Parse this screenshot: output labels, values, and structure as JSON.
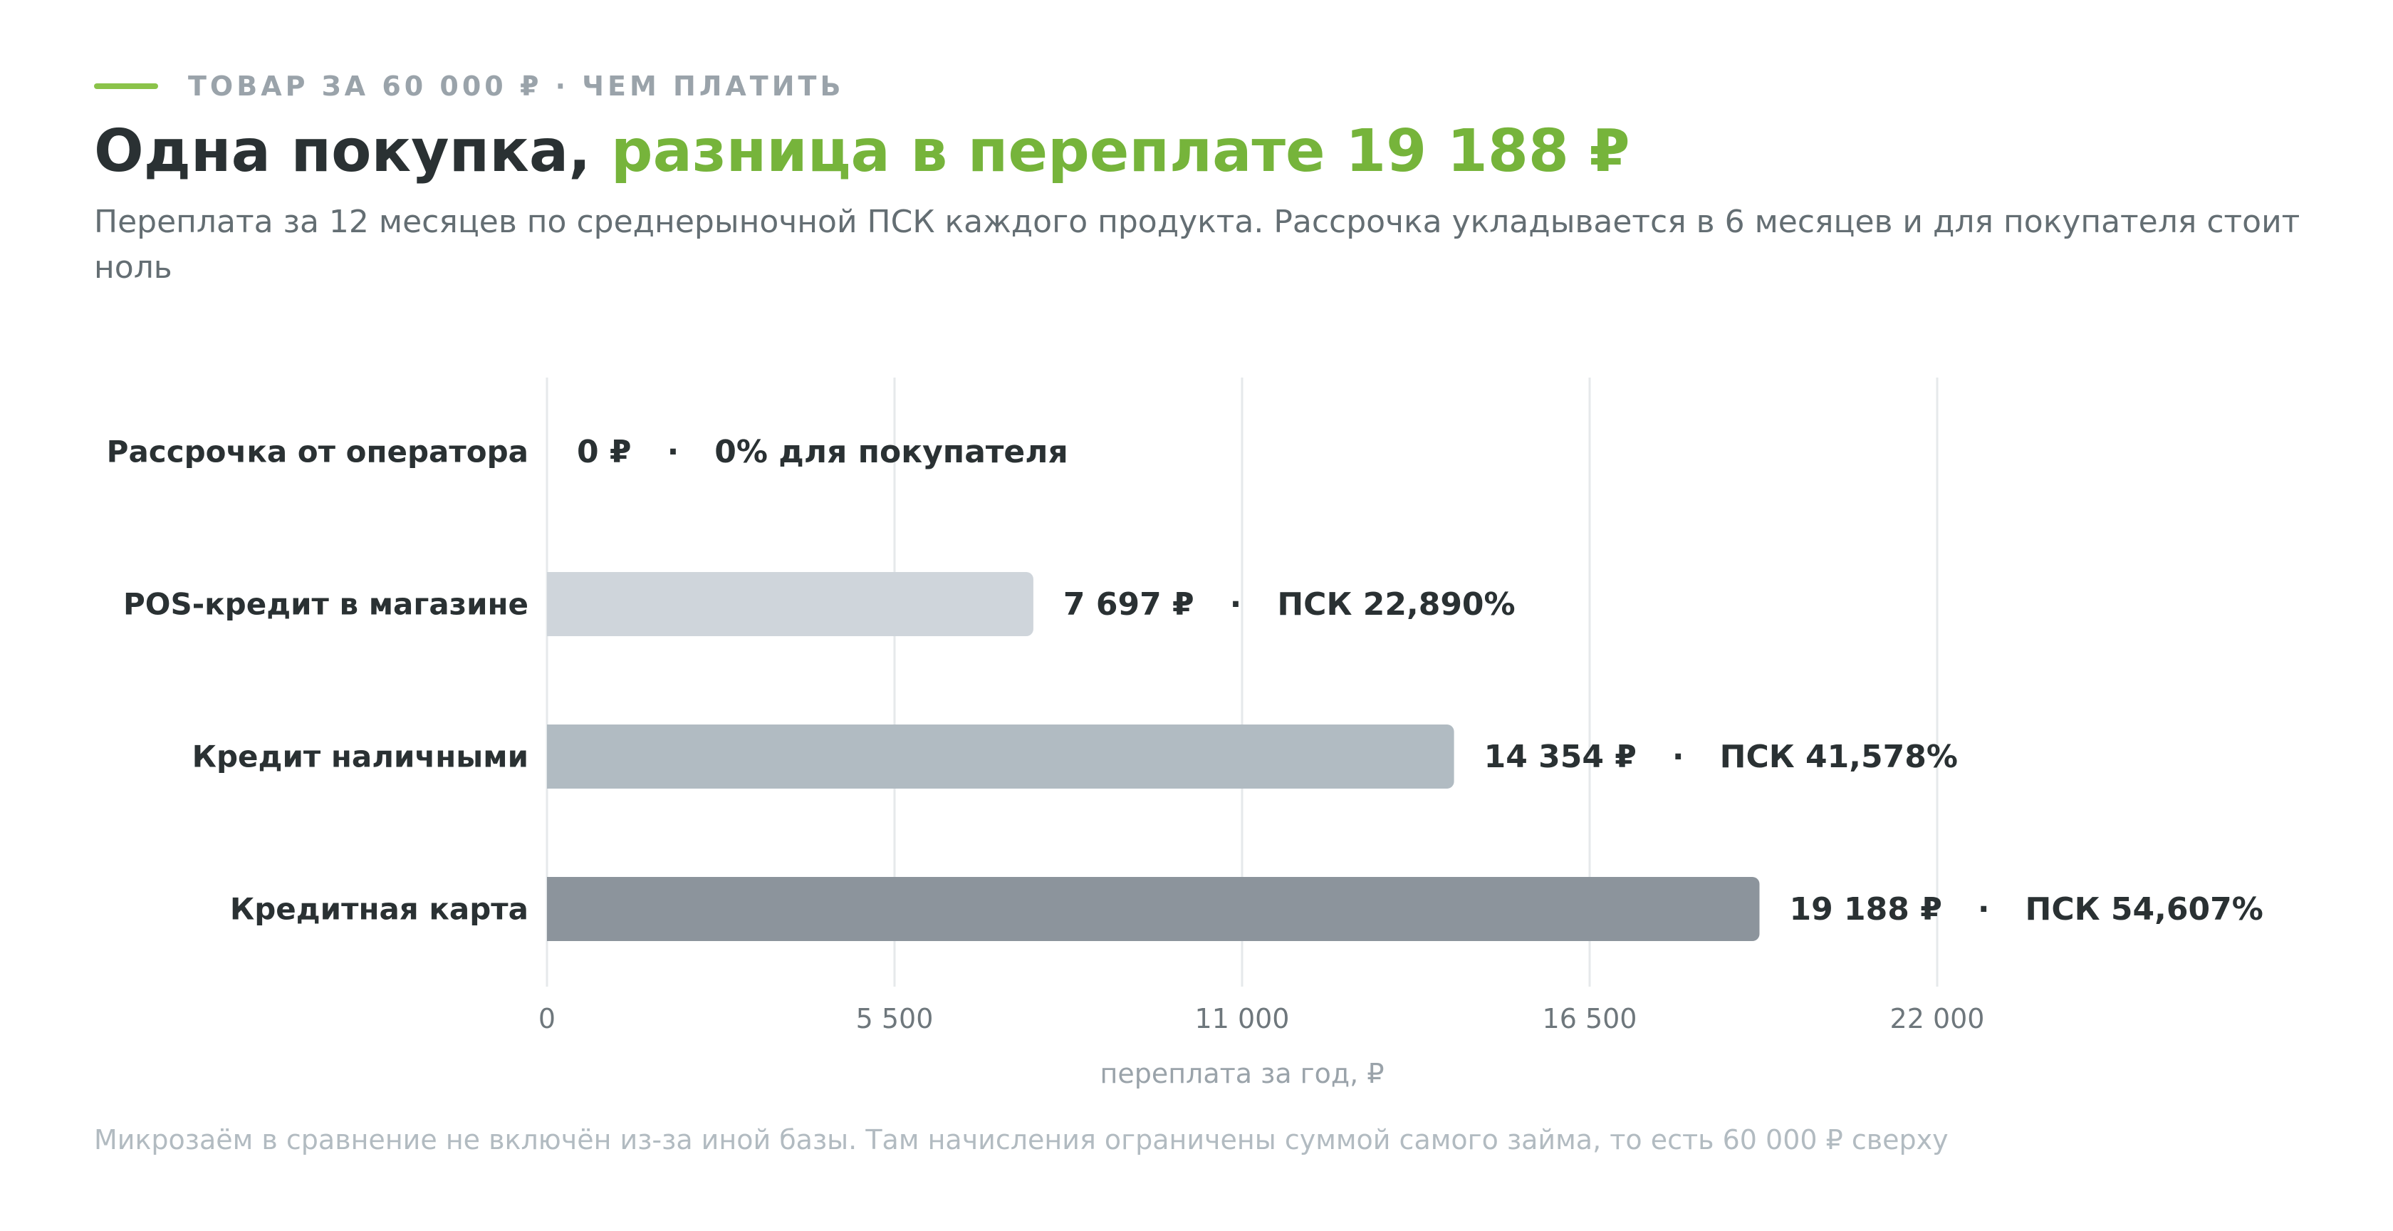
{
  "header": {
    "eyebrow": "ТОВАР ЗА 60 000 ₽ · ЧЕМ ПЛАТИТЬ",
    "title_main": "Одна покупка, ",
    "title_accent": "разница в переплате 19 188 ₽",
    "subtitle": "Переплата за 12 месяцев по среднерыночной ПСК каждого продукта. Рассрочка укладывается в 6 месяцев и для покупателя стоит ноль"
  },
  "colors": {
    "accent": "#76b43b",
    "eyebrow_line": "#8bc34a",
    "text_dark": "#2a3133",
    "grid": "#e6e9eb"
  },
  "chart_data": {
    "type": "bar",
    "orientation": "horizontal",
    "categories": [
      "Рассрочка от оператора",
      "POS-кредит в магазине",
      "Кредит наличными",
      "Кредитная карта"
    ],
    "values": [
      0,
      7697,
      14354,
      19188
    ],
    "value_labels": [
      "0 ₽",
      "7 697 ₽",
      "14 354 ₽",
      "19 188 ₽"
    ],
    "rate_labels": [
      "0% для покупателя",
      "ПСК 22,890%",
      "ПСК 41,578%",
      "ПСК 54,607%"
    ],
    "separator": "·",
    "bar_colors": [
      "#cfd5db",
      "#cfd5db",
      "#b1bbc2",
      "#8c949c"
    ],
    "xlim": [
      0,
      22000
    ],
    "xticks": [
      0,
      5500,
      11000,
      16500,
      22000
    ],
    "xtick_labels": [
      "0",
      "5 500",
      "11 000",
      "16 500",
      "22 000"
    ],
    "xlabel": "переплата за год, ₽",
    "grid": true
  },
  "footnote": "Микрозаём в сравнение не включён из-за иной базы. Там начисления ограничены суммой самого займа, то есть 60 000 ₽ сверху"
}
